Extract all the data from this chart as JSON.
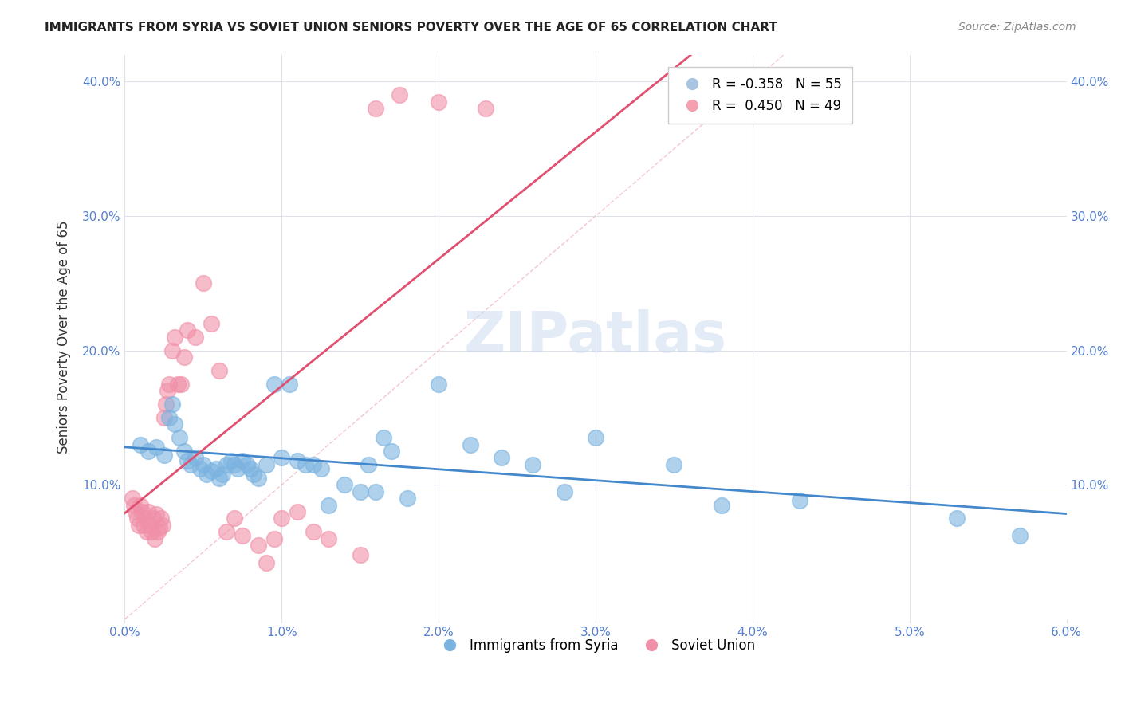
{
  "title": "IMMIGRANTS FROM SYRIA VS SOVIET UNION SENIORS POVERTY OVER THE AGE OF 65 CORRELATION CHART",
  "source": "Source: ZipAtlas.com",
  "xlabel": "",
  "ylabel": "Seniors Poverty Over the Age of 65",
  "xlim": [
    0.0,
    0.06
  ],
  "ylim": [
    0.0,
    0.42
  ],
  "x_ticks": [
    0.0,
    0.01,
    0.02,
    0.03,
    0.04,
    0.05,
    0.06
  ],
  "x_tick_labels": [
    "0.0%",
    "1.0%",
    "2.0%",
    "3.0%",
    "4.0%",
    "5.0%",
    "6.0%"
  ],
  "y_ticks": [
    0.0,
    0.1,
    0.2,
    0.3,
    0.4
  ],
  "y_tick_labels": [
    "",
    "10.0%",
    "20.0%",
    "30.0%",
    "40.0%"
  ],
  "legend_entries": [
    {
      "label": "R = -0.358   N = 55",
      "color": "#a8c4e0"
    },
    {
      "label": "R =  0.450   N = 49",
      "color": "#f4a0b0"
    }
  ],
  "legend_bottom": [
    "Immigrants from Syria",
    "Soviet Union"
  ],
  "syria_color": "#7bb3e0",
  "soviet_color": "#f090a8",
  "syria_R": -0.358,
  "syria_N": 55,
  "soviet_R": 0.45,
  "soviet_N": 49,
  "watermark": "ZIPatlas",
  "background_color": "#ffffff",
  "grid_color": "#e0e0e8",
  "syria_points_x": [
    0.001,
    0.0015,
    0.002,
    0.0025,
    0.0028,
    0.003,
    0.0032,
    0.0035,
    0.0038,
    0.004,
    0.0042,
    0.0045,
    0.0048,
    0.005,
    0.0052,
    0.0055,
    0.0058,
    0.006,
    0.0062,
    0.0065,
    0.0068,
    0.007,
    0.0072,
    0.0075,
    0.0078,
    0.008,
    0.0082,
    0.0085,
    0.009,
    0.0095,
    0.01,
    0.0105,
    0.011,
    0.0115,
    0.012,
    0.0125,
    0.013,
    0.014,
    0.015,
    0.0155,
    0.016,
    0.0165,
    0.017,
    0.018,
    0.02,
    0.022,
    0.024,
    0.026,
    0.028,
    0.03,
    0.035,
    0.038,
    0.043,
    0.053,
    0.057
  ],
  "syria_points_y": [
    0.13,
    0.125,
    0.128,
    0.122,
    0.15,
    0.16,
    0.145,
    0.135,
    0.125,
    0.118,
    0.115,
    0.12,
    0.112,
    0.115,
    0.108,
    0.11,
    0.112,
    0.105,
    0.108,
    0.115,
    0.118,
    0.115,
    0.112,
    0.118,
    0.115,
    0.112,
    0.108,
    0.105,
    0.115,
    0.175,
    0.12,
    0.175,
    0.118,
    0.115,
    0.115,
    0.112,
    0.085,
    0.1,
    0.095,
    0.115,
    0.095,
    0.135,
    0.125,
    0.09,
    0.175,
    0.13,
    0.12,
    0.115,
    0.095,
    0.135,
    0.115,
    0.085,
    0.088,
    0.075,
    0.062
  ],
  "soviet_points_x": [
    0.0005,
    0.0006,
    0.0007,
    0.0008,
    0.0009,
    0.001,
    0.0011,
    0.0012,
    0.0013,
    0.0014,
    0.0015,
    0.0016,
    0.0017,
    0.0018,
    0.0019,
    0.002,
    0.0021,
    0.0022,
    0.0023,
    0.0024,
    0.0025,
    0.0026,
    0.0027,
    0.0028,
    0.003,
    0.0032,
    0.0034,
    0.0036,
    0.0038,
    0.004,
    0.0045,
    0.005,
    0.0055,
    0.006,
    0.0065,
    0.007,
    0.0075,
    0.0085,
    0.009,
    0.0095,
    0.01,
    0.011,
    0.012,
    0.013,
    0.015,
    0.016,
    0.0175,
    0.02,
    0.023
  ],
  "soviet_points_y": [
    0.09,
    0.085,
    0.08,
    0.075,
    0.07,
    0.085,
    0.08,
    0.07,
    0.075,
    0.065,
    0.08,
    0.07,
    0.065,
    0.075,
    0.06,
    0.078,
    0.065,
    0.068,
    0.075,
    0.07,
    0.15,
    0.16,
    0.17,
    0.175,
    0.2,
    0.21,
    0.175,
    0.175,
    0.195,
    0.215,
    0.21,
    0.25,
    0.22,
    0.185,
    0.065,
    0.075,
    0.062,
    0.055,
    0.042,
    0.06,
    0.075,
    0.08,
    0.065,
    0.06,
    0.048,
    0.38,
    0.39,
    0.385,
    0.38
  ]
}
